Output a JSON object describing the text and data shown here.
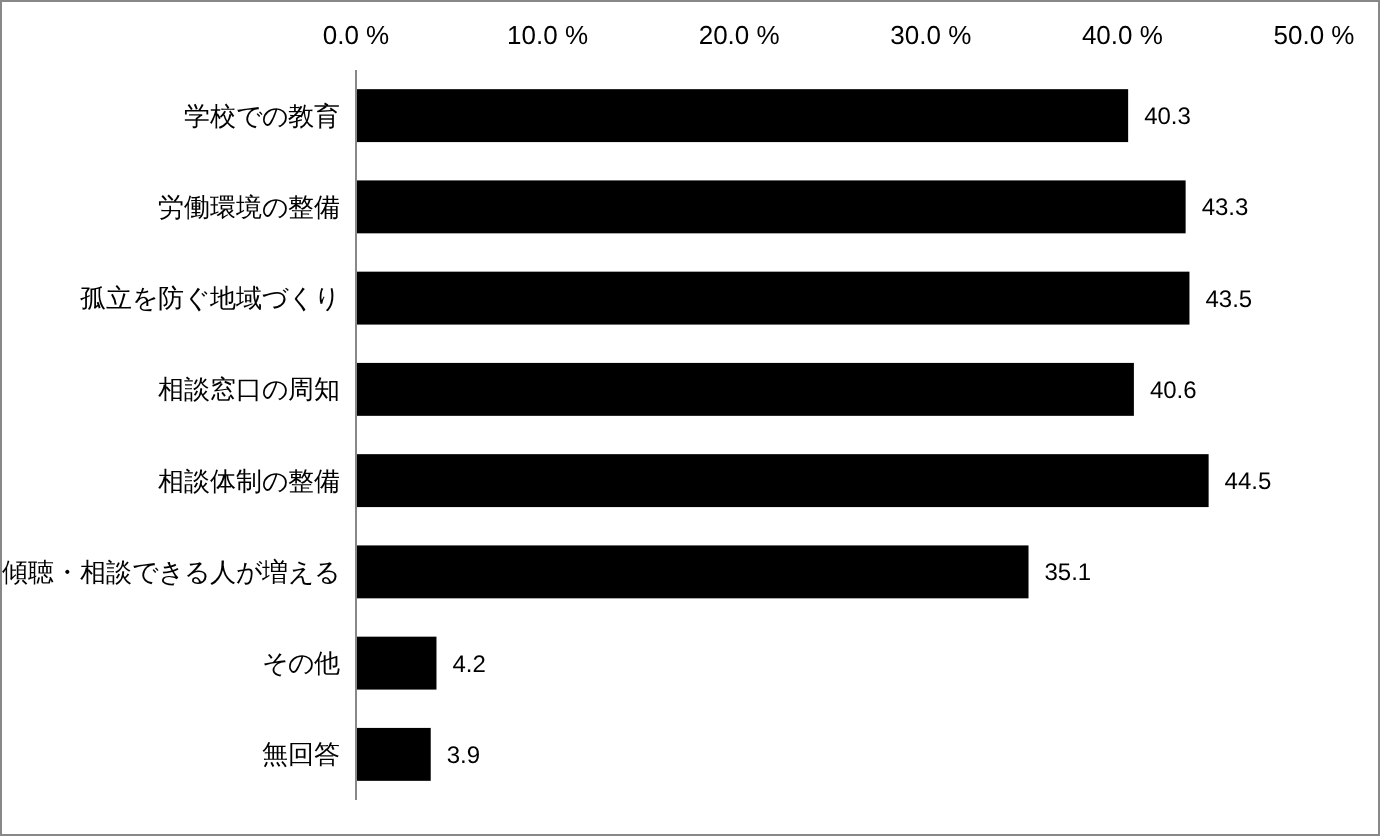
{
  "chart_data": {
    "type": "bar",
    "orientation": "horizontal",
    "categories": [
      "学校での教育",
      "労働環境の整備",
      "孤立を防ぐ地域づくり",
      "相談窓口の周知",
      "相談体制の整備",
      "傾聴・相談できる人が増える",
      "その他",
      "無回答"
    ],
    "values": [
      40.3,
      43.3,
      43.5,
      40.6,
      44.5,
      35.1,
      4.2,
      3.9
    ],
    "color": "#000000",
    "data_labels": true,
    "grid": false,
    "xlim": [
      0,
      50
    ],
    "xticks": [
      {
        "value": 0,
        "label": "0.0 %"
      },
      {
        "value": 10,
        "label": "10.0 %"
      },
      {
        "value": 20,
        "label": "20.0 %"
      },
      {
        "value": 30,
        "label": "30.0 %"
      },
      {
        "value": 40,
        "label": "40.0 %"
      },
      {
        "value": 50,
        "label": "50.0 %"
      }
    ]
  }
}
